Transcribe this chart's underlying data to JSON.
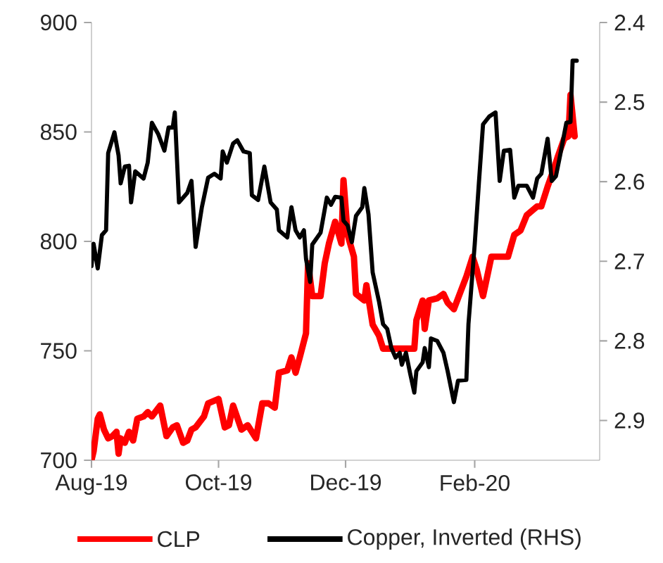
{
  "chart_data": {
    "type": "line",
    "xlim": [
      "2019-08-01",
      "2020-04-01"
    ],
    "xticks": [
      {
        "value": "2019-08-01",
        "label": "Aug-19"
      },
      {
        "value": "2019-10-01",
        "label": "Oct-19"
      },
      {
        "value": "2019-12-01",
        "label": "Dec-19"
      },
      {
        "value": "2020-02-01",
        "label": "Feb-20"
      }
    ],
    "ylim": [
      700,
      900
    ],
    "yticks": [
      700,
      750,
      800,
      850,
      900
    ],
    "y2lim": [
      2.95,
      2.4
    ],
    "y2ticks": [
      2.4,
      2.5,
      2.6,
      2.7,
      2.8,
      2.9
    ],
    "legend": "bottom",
    "series": [
      {
        "name": "CLP",
        "color": "#ff0000",
        "x": [
          "2019-08-01",
          "2019-08-02",
          "2019-08-04",
          "2019-08-05",
          "2019-08-07",
          "2019-08-09",
          "2019-08-11",
          "2019-08-13",
          "2019-08-14",
          "2019-08-15",
          "2019-08-17",
          "2019-08-19",
          "2019-08-21",
          "2019-08-23",
          "2019-08-26",
          "2019-08-28",
          "2019-08-30",
          "2019-09-03",
          "2019-09-06",
          "2019-09-09",
          "2019-09-11",
          "2019-09-14",
          "2019-09-16",
          "2019-09-18",
          "2019-09-20",
          "2019-09-24",
          "2019-09-26",
          "2019-10-01",
          "2019-10-04",
          "2019-10-06",
          "2019-10-08",
          "2019-10-12",
          "2019-10-15",
          "2019-10-19",
          "2019-10-22",
          "2019-10-25",
          "2019-10-28",
          "2019-10-30",
          "2019-11-03",
          "2019-11-05",
          "2019-11-07",
          "2019-11-09",
          "2019-11-12",
          "2019-11-13",
          "2019-11-15",
          "2019-11-19",
          "2019-11-21",
          "2019-11-23",
          "2019-11-26",
          "2019-11-29",
          "2019-11-30",
          "2019-12-02",
          "2019-12-05",
          "2019-12-06",
          "2019-12-10",
          "2019-12-11",
          "2019-12-14",
          "2019-12-17",
          "2019-12-19",
          "2019-12-23",
          "2019-12-26",
          "2019-12-31",
          "2020-01-03",
          "2020-01-04",
          "2020-01-07",
          "2020-01-08",
          "2020-01-10",
          "2020-01-14",
          "2020-01-17",
          "2020-01-19",
          "2020-01-22",
          "2020-01-24",
          "2020-01-28",
          "2020-01-31",
          "2020-02-02",
          "2020-02-05",
          "2020-02-09",
          "2020-02-13",
          "2020-02-17",
          "2020-02-20",
          "2020-02-23",
          "2020-02-26",
          "2020-03-02",
          "2020-03-04",
          "2020-03-07",
          "2020-03-10",
          "2020-03-12",
          "2020-03-15",
          "2020-03-17",
          "2020-03-18",
          "2020-03-20"
        ],
        "values": [
          700,
          704,
          719,
          721,
          714,
          710,
          711,
          713,
          703,
          710,
          708,
          713,
          709,
          719,
          720,
          722,
          720,
          725,
          711,
          715,
          716,
          708,
          709,
          714,
          715,
          720,
          726,
          728,
          715,
          716,
          725,
          714,
          716,
          710,
          726,
          726,
          724,
          740,
          741,
          747,
          740,
          747,
          758,
          790,
          775,
          775,
          790,
          799,
          809,
          799,
          828,
          803,
          793,
          776,
          773,
          780,
          762,
          757,
          751,
          751,
          751,
          751,
          751,
          764,
          773,
          760,
          773,
          774,
          776,
          772,
          769,
          774,
          784,
          793,
          787,
          775,
          793,
          793,
          793,
          803,
          805,
          812,
          816,
          816,
          825,
          833,
          839,
          847,
          848,
          867,
          848
        ]
      },
      {
        "name": "Copper, Inverted (RHS)",
        "color": "#000000",
        "axis": "y2",
        "x": [
          "2019-08-01",
          "2019-08-02",
          "2019-08-04",
          "2019-08-06",
          "2019-08-08",
          "2019-08-09",
          "2019-08-12",
          "2019-08-14",
          "2019-08-15",
          "2019-08-17",
          "2019-08-19",
          "2019-08-20",
          "2019-08-22",
          "2019-08-26",
          "2019-08-28",
          "2019-08-30",
          "2019-09-02",
          "2019-09-05",
          "2019-09-07",
          "2019-09-09",
          "2019-09-10",
          "2019-09-12",
          "2019-09-16",
          "2019-09-18",
          "2019-09-20",
          "2019-09-23",
          "2019-09-26",
          "2019-09-29",
          "2019-10-02",
          "2019-10-03",
          "2019-10-05",
          "2019-10-08",
          "2019-10-10",
          "2019-10-13",
          "2019-10-16",
          "2019-10-17",
          "2019-10-20",
          "2019-10-23",
          "2019-10-26",
          "2019-10-29",
          "2019-10-30",
          "2019-11-03",
          "2019-11-05",
          "2019-11-07",
          "2019-11-09",
          "2019-11-11",
          "2019-11-12",
          "2019-11-14",
          "2019-11-15",
          "2019-11-19",
          "2019-11-22",
          "2019-11-24",
          "2019-11-26",
          "2019-11-29",
          "2019-11-30",
          "2019-12-02",
          "2019-12-04",
          "2019-12-06",
          "2019-12-09",
          "2019-12-10",
          "2019-12-12",
          "2019-12-14",
          "2019-12-17",
          "2019-12-19",
          "2019-12-21",
          "2019-12-23",
          "2019-12-25",
          "2019-12-27",
          "2019-12-28",
          "2019-12-30",
          "2020-01-01",
          "2020-01-03",
          "2020-01-04",
          "2020-01-07",
          "2020-01-08",
          "2020-01-10",
          "2020-01-11",
          "2020-01-14",
          "2020-01-17",
          "2020-01-19",
          "2020-01-22",
          "2020-01-24",
          "2020-01-28",
          "2020-01-29",
          "2020-02-01",
          "2020-02-03",
          "2020-02-05",
          "2020-02-08",
          "2020-02-11",
          "2020-02-13",
          "2020-02-15",
          "2020-02-18",
          "2020-02-20",
          "2020-02-22",
          "2020-02-26",
          "2020-02-29",
          "2020-03-02",
          "2020-03-04",
          "2020-03-07",
          "2020-03-09",
          "2020-03-11",
          "2020-03-13",
          "2020-03-16",
          "2020-03-18",
          "2020-03-19",
          "2020-03-21"
        ],
        "values": [
          2.706,
          2.678,
          2.709,
          2.667,
          2.661,
          2.564,
          2.538,
          2.567,
          2.602,
          2.581,
          2.58,
          2.626,
          2.587,
          2.596,
          2.576,
          2.526,
          2.54,
          2.561,
          2.532,
          2.532,
          2.513,
          2.626,
          2.614,
          2.599,
          2.682,
          2.632,
          2.595,
          2.59,
          2.596,
          2.562,
          2.576,
          2.552,
          2.548,
          2.562,
          2.564,
          2.617,
          2.623,
          2.581,
          2.626,
          2.635,
          2.661,
          2.67,
          2.632,
          2.661,
          2.67,
          2.661,
          2.697,
          2.726,
          2.679,
          2.664,
          2.62,
          2.629,
          2.619,
          2.62,
          2.649,
          2.655,
          2.676,
          2.643,
          2.632,
          2.608,
          2.641,
          2.714,
          2.75,
          2.779,
          2.785,
          2.809,
          2.821,
          2.815,
          2.83,
          2.815,
          2.841,
          2.865,
          2.838,
          2.827,
          2.809,
          2.833,
          2.797,
          2.8,
          2.815,
          2.838,
          2.877,
          2.85,
          2.849,
          2.779,
          2.679,
          2.602,
          2.528,
          2.518,
          2.513,
          2.599,
          2.561,
          2.56,
          2.62,
          2.605,
          2.605,
          2.62,
          2.596,
          2.59,
          2.546,
          2.599,
          2.593,
          2.567,
          2.526,
          2.525,
          2.448,
          2.448
        ]
      }
    ]
  }
}
